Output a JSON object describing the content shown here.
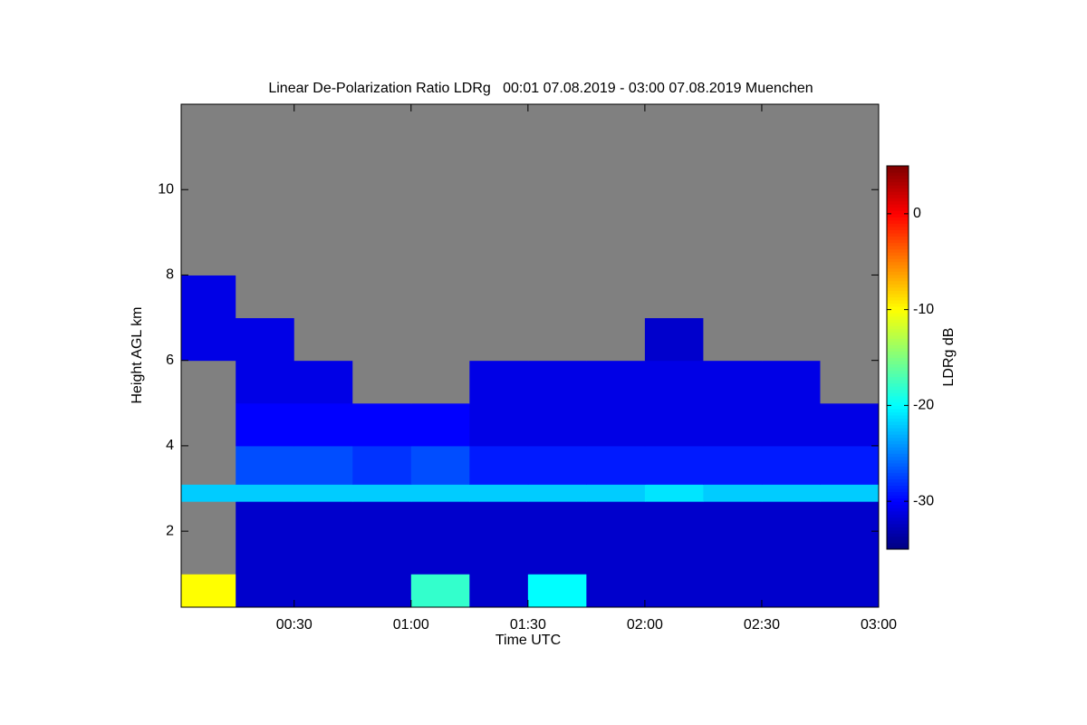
{
  "chart_data": {
    "type": "heatmap",
    "title": "Linear De-Polarization Ratio LDRg   00:01 07.08.2019 - 03:00 07.08.2019 Muenchen",
    "xlabel": "Time UTC",
    "ylabel": "Height AGL km",
    "colorbar_label": "LDRg dB",
    "colormap": "jet",
    "nodata_color": "#808080",
    "xlim": [
      1,
      180
    ],
    "ylim": [
      0.22,
      12
    ],
    "clim": [
      -35,
      5
    ],
    "xticks": [
      {
        "value": 30,
        "label": "00:30"
      },
      {
        "value": 60,
        "label": "01:00"
      },
      {
        "value": 90,
        "label": "01:30"
      },
      {
        "value": 120,
        "label": "02:00"
      },
      {
        "value": 150,
        "label": "02:30"
      },
      {
        "value": 180,
        "label": "03:00"
      }
    ],
    "yticks": [
      2,
      4,
      6,
      8,
      10
    ],
    "cticks": [
      0,
      -10,
      -20,
      -30
    ],
    "xbins": [
      1,
      15,
      30,
      45,
      60,
      75,
      90,
      105,
      120,
      135,
      150,
      165,
      180
    ],
    "ybins": [
      0.22,
      1,
      2,
      2.7,
      3.1,
      4,
      5,
      6,
      7,
      8,
      12
    ],
    "values": [
      [
        -10,
        -32,
        -32,
        -32,
        -18,
        -32,
        -20,
        -32,
        -32,
        -32,
        -32,
        -32
      ],
      [
        null,
        -32,
        -32,
        -32,
        -32,
        -32,
        -32,
        -32,
        -32,
        -32,
        -32,
        -32
      ],
      [
        null,
        -32,
        -32,
        -32,
        -32,
        -32,
        -32,
        -32,
        -32,
        -32,
        -32,
        -32
      ],
      [
        -22,
        -22,
        -22,
        -22,
        -22,
        -22,
        -22,
        -22,
        -21,
        -22,
        -22,
        -22
      ],
      [
        null,
        -27,
        -27,
        -28,
        -27,
        -29,
        -29,
        -29,
        -29,
        -29,
        -29,
        -29
      ],
      [
        null,
        -30,
        -30,
        -30,
        -30,
        -31,
        -31,
        -31,
        -31,
        -31,
        -31,
        -31
      ],
      [
        null,
        -31,
        -31,
        null,
        null,
        -31,
        -31,
        -31,
        -31,
        -31,
        -31,
        null
      ],
      [
        -31,
        -31,
        null,
        null,
        null,
        null,
        null,
        null,
        -32,
        null,
        null,
        null
      ],
      [
        -31,
        null,
        null,
        null,
        null,
        null,
        null,
        null,
        null,
        null,
        null,
        null
      ],
      [
        null,
        null,
        null,
        null,
        null,
        null,
        null,
        null,
        null,
        null,
        null,
        null
      ]
    ]
  }
}
